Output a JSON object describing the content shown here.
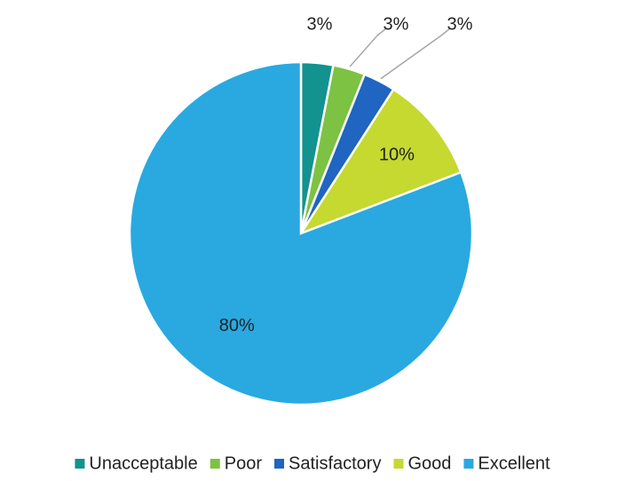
{
  "chart_data": {
    "type": "pie",
    "categories": [
      "Unacceptable",
      "Poor",
      "Satisfactory",
      "Good",
      "Excellent"
    ],
    "values": [
      3,
      3,
      3,
      10,
      80
    ],
    "value_labels": [
      "3%",
      "3%",
      "3%",
      "10%",
      "80%"
    ],
    "colors": [
      "#12938f",
      "#7dc242",
      "#1f65c1",
      "#c5d930",
      "#29a9e0"
    ],
    "legend": "bottom"
  }
}
